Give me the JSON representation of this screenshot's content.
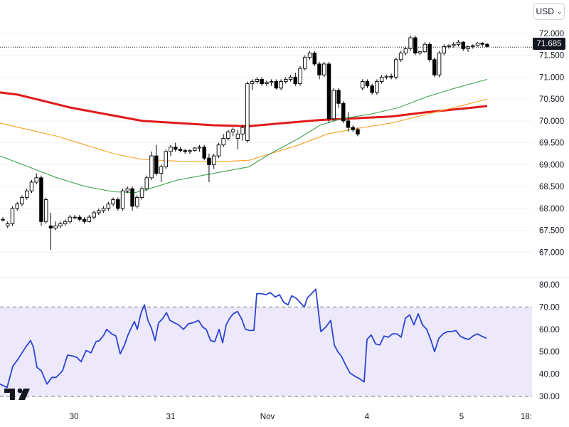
{
  "currency_selector": {
    "label": "USD"
  },
  "last_price_label": "71.685",
  "colors": {
    "candle_up": "#ffffff",
    "candle_down": "#000000",
    "candle_border": "#000000",
    "ma_red": "#e01a1a",
    "ma_orange": "#f5a020",
    "ma_green": "#3fa34d",
    "rsi_line": "#2a45d4",
    "rsi_band": "#ede9fa"
  },
  "chart_data": [
    {
      "type": "candlestick",
      "x_tick_labels": [
        "30",
        "31",
        "Nov",
        "4",
        "5",
        "18:"
      ],
      "y_tick_labels": [
        "67.000",
        "67.500",
        "68.000",
        "68.500",
        "69.000",
        "69.500",
        "70.000",
        "70.500",
        "71.000",
        "71.500",
        "72.000"
      ],
      "ylim": [
        66.55,
        72.6
      ],
      "last_price": 71.685,
      "candles": [
        [
          67.75,
          67.8,
          67.7,
          67.75
        ],
        [
          67.6,
          67.7,
          67.55,
          67.65
        ],
        [
          67.65,
          68.05,
          67.6,
          68.0
        ],
        [
          68.0,
          68.15,
          67.95,
          68.1
        ],
        [
          68.1,
          68.3,
          68.05,
          68.25
        ],
        [
          68.25,
          68.45,
          68.2,
          68.4
        ],
        [
          68.4,
          68.65,
          68.35,
          68.6
        ],
        [
          68.6,
          68.8,
          68.55,
          68.7
        ],
        [
          68.7,
          68.75,
          67.6,
          67.7
        ],
        [
          67.7,
          68.25,
          67.65,
          68.2
        ],
        [
          67.6,
          67.9,
          67.05,
          67.55
        ],
        [
          67.55,
          67.7,
          67.5,
          67.6
        ],
        [
          67.6,
          67.7,
          67.55,
          67.65
        ],
        [
          67.65,
          67.75,
          67.6,
          67.7
        ],
        [
          67.7,
          67.85,
          67.65,
          67.8
        ],
        [
          67.8,
          67.85,
          67.75,
          67.8
        ],
        [
          67.8,
          67.85,
          67.7,
          67.75
        ],
        [
          67.75,
          67.8,
          67.65,
          67.7
        ],
        [
          67.7,
          67.85,
          67.68,
          67.8
        ],
        [
          67.8,
          67.95,
          67.75,
          67.9
        ],
        [
          67.9,
          68.0,
          67.85,
          67.95
        ],
        [
          67.95,
          68.05,
          67.9,
          68.0
        ],
        [
          68.0,
          68.15,
          67.95,
          68.1
        ],
        [
          68.1,
          68.25,
          68.05,
          68.2
        ],
        [
          68.2,
          68.25,
          67.95,
          68.0
        ],
        [
          68.0,
          68.45,
          67.95,
          68.4
        ],
        [
          68.4,
          68.5,
          68.35,
          68.45
        ],
        [
          68.45,
          68.5,
          67.95,
          68.05
        ],
        [
          68.05,
          68.3,
          68.0,
          68.25
        ],
        [
          68.25,
          68.5,
          68.2,
          68.45
        ],
        [
          68.45,
          68.75,
          68.4,
          68.7
        ],
        [
          68.7,
          69.3,
          68.65,
          69.2
        ],
        [
          69.2,
          69.45,
          68.75,
          68.8
        ],
        [
          68.8,
          69.0,
          68.6,
          68.95
        ],
        [
          68.95,
          69.35,
          68.9,
          69.3
        ],
        [
          69.3,
          69.45,
          69.2,
          69.4
        ],
        [
          69.4,
          69.5,
          69.3,
          69.35
        ],
        [
          69.35,
          69.4,
          69.28,
          69.32
        ],
        [
          69.32,
          69.36,
          69.25,
          69.3
        ],
        [
          69.3,
          69.35,
          69.25,
          69.32
        ],
        [
          69.32,
          69.4,
          69.3,
          69.38
        ],
        [
          69.38,
          69.45,
          69.3,
          69.4
        ],
        [
          69.4,
          69.45,
          69.1,
          69.15
        ],
        [
          69.15,
          69.25,
          68.6,
          69.0
        ],
        [
          69.0,
          69.25,
          68.9,
          69.2
        ],
        [
          69.2,
          69.5,
          69.15,
          69.45
        ],
        [
          69.45,
          69.7,
          69.4,
          69.6
        ],
        [
          69.6,
          69.8,
          69.55,
          69.75
        ],
        [
          69.75,
          69.85,
          69.65,
          69.8
        ],
        [
          69.6,
          69.8,
          69.35,
          69.7
        ],
        [
          69.7,
          69.9,
          69.55,
          69.85
        ],
        [
          69.55,
          70.9,
          69.5,
          70.85
        ],
        [
          70.85,
          70.95,
          70.7,
          70.9
        ],
        [
          70.9,
          71.0,
          70.85,
          70.95
        ],
        [
          70.95,
          71.0,
          70.8,
          70.85
        ],
        [
          70.85,
          70.92,
          70.8,
          70.88
        ],
        [
          70.88,
          70.95,
          70.8,
          70.9
        ],
        [
          70.9,
          70.95,
          70.72,
          70.75
        ],
        [
          70.75,
          70.95,
          70.7,
          70.9
        ],
        [
          70.9,
          71.0,
          70.85,
          70.95
        ],
        [
          70.95,
          71.05,
          70.9,
          71.0
        ],
        [
          71.0,
          71.1,
          70.8,
          70.85
        ],
        [
          70.85,
          71.25,
          70.8,
          71.2
        ],
        [
          71.2,
          71.5,
          71.15,
          71.45
        ],
        [
          71.45,
          71.6,
          71.4,
          71.55
        ],
        [
          71.55,
          71.6,
          71.25,
          71.3
        ],
        [
          71.3,
          71.35,
          70.95,
          71.05
        ],
        [
          71.05,
          71.35,
          71.0,
          71.3
        ],
        [
          71.3,
          71.35,
          69.95,
          70.05
        ],
        [
          70.05,
          70.75,
          70.0,
          70.7
        ],
        [
          70.7,
          70.75,
          70.3,
          70.4
        ],
        [
          70.4,
          70.45,
          69.95,
          70.0
        ],
        [
          70.0,
          70.2,
          69.75,
          69.85
        ],
        [
          69.85,
          69.9,
          69.75,
          69.8
        ],
        [
          69.8,
          69.85,
          69.65,
          69.7
        ],
        [
          70.75,
          70.95,
          70.7,
          70.9
        ],
        [
          70.9,
          70.95,
          70.75,
          70.8
        ],
        [
          70.8,
          70.85,
          70.6,
          70.65
        ],
        [
          70.65,
          70.95,
          70.6,
          70.9
        ],
        [
          70.9,
          71.05,
          70.85,
          71.0
        ],
        [
          71.0,
          71.05,
          70.95,
          71.02
        ],
        [
          71.02,
          71.08,
          70.95,
          71.0
        ],
        [
          71.0,
          71.45,
          70.95,
          71.4
        ],
        [
          71.4,
          71.6,
          71.35,
          71.55
        ],
        [
          71.55,
          71.7,
          71.5,
          71.65
        ],
        [
          71.65,
          71.95,
          71.6,
          71.9
        ],
        [
          71.9,
          71.95,
          71.5,
          71.55
        ],
        [
          71.55,
          71.6,
          71.5,
          71.58
        ],
        [
          71.58,
          71.8,
          71.55,
          71.75
        ],
        [
          71.75,
          71.8,
          71.35,
          71.4
        ],
        [
          71.4,
          71.45,
          71.0,
          71.05
        ],
        [
          71.05,
          71.6,
          71.0,
          71.55
        ],
        [
          71.55,
          71.75,
          71.5,
          71.7
        ],
        [
          71.7,
          71.75,
          71.65,
          71.72
        ],
        [
          71.72,
          71.8,
          71.68,
          71.75
        ],
        [
          71.75,
          71.85,
          71.7,
          71.8
        ],
        [
          71.8,
          71.82,
          71.6,
          71.65
        ],
        [
          71.65,
          71.72,
          71.58,
          71.7
        ],
        [
          71.7,
          71.75,
          71.65,
          71.72
        ],
        [
          71.72,
          71.8,
          71.7,
          71.78
        ],
        [
          71.78,
          71.8,
          71.7,
          71.75
        ],
        [
          71.75,
          71.78,
          71.68,
          71.7
        ]
      ],
      "series": [
        {
          "color": "#e01a1a",
          "points": [
            [
              0,
              70.65
            ],
            [
              25,
              70.6
            ],
            [
              50,
              70.5
            ],
            [
              100,
              70.3
            ],
            [
              150,
              70.15
            ],
            [
              200,
              70.0
            ],
            [
              250,
              69.95
            ],
            [
              300,
              69.9
            ],
            [
              350,
              69.88
            ],
            [
              400,
              69.95
            ],
            [
              450,
              70.02
            ],
            [
              500,
              70.06
            ],
            [
              550,
              70.1
            ],
            [
              600,
              70.2
            ],
            [
              650,
              70.28
            ],
            [
              685,
              70.34
            ]
          ]
        },
        {
          "color": "#f5a020",
          "points": [
            [
              0,
              69.95
            ],
            [
              40,
              69.8
            ],
            [
              80,
              69.65
            ],
            [
              120,
              69.45
            ],
            [
              160,
              69.25
            ],
            [
              200,
              69.12
            ],
            [
              250,
              69.08
            ],
            [
              300,
              69.06
            ],
            [
              350,
              69.1
            ],
            [
              380,
              69.25
            ],
            [
              420,
              69.45
            ],
            [
              460,
              69.7
            ],
            [
              500,
              69.82
            ],
            [
              550,
              69.95
            ],
            [
              600,
              70.15
            ],
            [
              650,
              70.35
            ],
            [
              685,
              70.5
            ]
          ]
        },
        {
          "color": "#3fa34d",
          "points": [
            [
              0,
              69.2
            ],
            [
              40,
              68.95
            ],
            [
              80,
              68.7
            ],
            [
              120,
              68.5
            ],
            [
              160,
              68.38
            ],
            [
              190,
              68.36
            ],
            [
              210,
              68.45
            ],
            [
              250,
              68.65
            ],
            [
              300,
              68.8
            ],
            [
              350,
              68.95
            ],
            [
              380,
              69.25
            ],
            [
              420,
              69.6
            ],
            [
              450,
              69.9
            ],
            [
              480,
              70.05
            ],
            [
              520,
              70.15
            ],
            [
              560,
              70.3
            ],
            [
              600,
              70.55
            ],
            [
              640,
              70.75
            ],
            [
              685,
              70.95
            ]
          ]
        }
      ]
    },
    {
      "type": "line",
      "y_tick_labels": [
        "30.00",
        "40.00",
        "50.00",
        "60.00",
        "70.00",
        "80.00"
      ],
      "ylim": [
        28,
        82
      ],
      "band": [
        30,
        70
      ],
      "color": "#2a45d4",
      "points": [
        [
          0,
          35.5
        ],
        [
          10,
          34
        ],
        [
          18,
          43.5
        ],
        [
          25,
          46.5
        ],
        [
          30,
          49
        ],
        [
          37,
          52.5
        ],
        [
          43,
          55
        ],
        [
          47,
          52
        ],
        [
          52,
          43
        ],
        [
          58,
          41.5
        ],
        [
          66,
          35.5
        ],
        [
          73,
          38.5
        ],
        [
          79,
          38.5
        ],
        [
          88,
          41.5
        ],
        [
          95,
          48.5
        ],
        [
          103,
          48
        ],
        [
          108,
          47.5
        ],
        [
          114,
          45.5
        ],
        [
          121,
          50.5
        ],
        [
          128,
          49.5
        ],
        [
          135,
          54.5
        ],
        [
          140,
          55
        ],
        [
          146,
          57.5
        ],
        [
          150,
          60
        ],
        [
          157,
          58
        ],
        [
          163,
          57
        ],
        [
          169,
          49
        ],
        [
          175,
          53
        ],
        [
          180,
          57.5
        ],
        [
          185,
          61
        ],
        [
          189,
          63.5
        ],
        [
          193,
          60
        ],
        [
          198,
          67
        ],
        [
          203,
          71
        ],
        [
          208,
          64
        ],
        [
          213,
          60.5
        ],
        [
          218,
          55
        ],
        [
          223,
          63
        ],
        [
          228,
          64.5
        ],
        [
          234,
          67.5
        ],
        [
          239,
          64
        ],
        [
          245,
          63
        ],
        [
          251,
          62
        ],
        [
          258,
          60
        ],
        [
          265,
          62.5
        ],
        [
          272,
          63
        ],
        [
          279,
          64
        ],
        [
          285,
          61
        ],
        [
          290,
          60
        ],
        [
          296,
          55
        ],
        [
          302,
          54.5
        ],
        [
          308,
          60
        ],
        [
          313,
          54
        ],
        [
          318,
          62
        ],
        [
          323,
          65
        ],
        [
          328,
          67
        ],
        [
          334,
          68
        ],
        [
          340,
          64.5
        ],
        [
          345,
          60
        ],
        [
          351,
          59.5
        ],
        [
          357,
          59.5
        ],
        [
          361,
          76
        ],
        [
          367,
          76
        ],
        [
          374,
          75.5
        ],
        [
          380,
          76.5
        ],
        [
          387,
          74.5
        ],
        [
          393,
          75.5
        ],
        [
          399,
          72
        ],
        [
          405,
          71
        ],
        [
          410,
          75
        ],
        [
          416,
          74
        ],
        [
          422,
          72
        ],
        [
          428,
          70
        ],
        [
          432,
          74
        ],
        [
          438,
          76
        ],
        [
          444,
          78
        ],
        [
          451,
          59
        ],
        [
          458,
          61
        ],
        [
          465,
          64
        ],
        [
          470,
          53
        ],
        [
          475,
          50
        ],
        [
          480,
          48
        ],
        [
          486,
          44
        ],
        [
          492,
          40.5
        ],
        [
          499,
          39
        ],
        [
          505,
          38
        ],
        [
          512,
          36.5
        ],
        [
          516,
          55.5
        ],
        [
          522,
          57.5
        ],
        [
          528,
          53.5
        ],
        [
          534,
          53
        ],
        [
          540,
          57
        ],
        [
          546,
          56.5
        ],
        [
          552,
          58
        ],
        [
          558,
          58
        ],
        [
          564,
          56.5
        ],
        [
          570,
          65
        ],
        [
          576,
          66.5
        ],
        [
          582,
          62
        ],
        [
          588,
          67
        ],
        [
          594,
          62
        ],
        [
          600,
          60
        ],
        [
          606,
          55
        ],
        [
          611,
          50
        ],
        [
          617,
          56
        ],
        [
          623,
          58
        ],
        [
          629,
          59
        ],
        [
          635,
          59
        ],
        [
          641,
          59.5
        ],
        [
          647,
          57
        ],
        [
          653,
          56
        ],
        [
          659,
          55.5
        ],
        [
          665,
          57
        ],
        [
          671,
          58
        ],
        [
          677,
          57
        ],
        [
          684,
          56
        ]
      ]
    }
  ]
}
